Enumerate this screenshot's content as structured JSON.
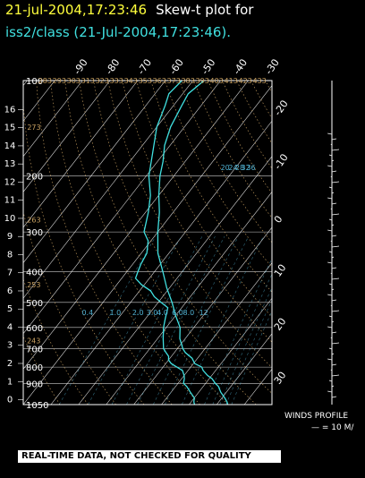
{
  "header": {
    "date_text": "21-jul-2004,17:23:46",
    "plot_label": "Skew-t plot for",
    "subtitle": "iss2/class (21-Jul-2004,17:23:46)."
  },
  "colors": {
    "background": "#000000",
    "title_date": "#ffff3c",
    "subtitle": "#40e0e0",
    "temperature_trace": "#40e0e0",
    "dewpoint_trace": "#40e0e0",
    "isotherms": "#ffffff",
    "isobars": "#ffffff",
    "dry_adiabats": "#c8a060",
    "mixing_ratio": "#50b0d0"
  },
  "chart_data": {
    "type": "line",
    "xlabel": "",
    "ylabel": "",
    "pressure_levels": [
      "100",
      "200",
      "300",
      "400",
      "500",
      "600",
      "700",
      "800",
      "900",
      "1050"
    ],
    "height_ticks": [
      "0",
      "1",
      "2",
      "3",
      "4",
      "5",
      "6",
      "7",
      "8",
      "9",
      "10",
      "11",
      "12",
      "13",
      "14",
      "15",
      "16"
    ],
    "temp_ticks_top": [
      "-90",
      "-80",
      "-70",
      "-60",
      "-50",
      "-40",
      "-30"
    ],
    "temp_ticks_right": [
      "-20",
      "-10",
      "0",
      "10",
      "20",
      "30"
    ],
    "ylim_hpa": [
      1050,
      100
    ],
    "xlim_celsius": [
      -40,
      50
    ],
    "skew_celsius_per_log_p": 1,
    "dry_adiabat_labels": [
      "243",
      "253",
      "263",
      "273",
      "283",
      "293",
      "303",
      "313",
      "323",
      "333",
      "343",
      "353",
      "363",
      "373",
      "383",
      "393",
      "403",
      "413",
      "423",
      "433",
      "443",
      "453",
      "463",
      "473"
    ],
    "mixing_ratio_labels": [
      "20",
      "24",
      "28",
      "32",
      "36",
      "0.4",
      "1.0",
      "2.0",
      "3.0",
      "4.0",
      "6.0",
      "8.0",
      "12"
    ],
    "series": [
      {
        "values": [
          [
            1050,
            34
          ],
          [
            1030,
            33
          ],
          [
            1000,
            31
          ],
          [
            960,
            28
          ],
          [
            920,
            25.5
          ],
          [
            900,
            23.5
          ],
          [
            870,
            21
          ],
          [
            850,
            18.5
          ],
          [
            820,
            15.5
          ],
          [
            800,
            14
          ],
          [
            780,
            10.5
          ],
          [
            750,
            8
          ],
          [
            720,
            4
          ],
          [
            700,
            2
          ],
          [
            650,
            -2
          ],
          [
            600,
            -5
          ],
          [
            550,
            -10
          ],
          [
            500,
            -15
          ],
          [
            450,
            -21
          ],
          [
            400,
            -27
          ],
          [
            350,
            -34
          ],
          [
            300,
            -40
          ],
          [
            260,
            -45
          ],
          [
            230,
            -50
          ],
          [
            200,
            -55
          ],
          [
            180,
            -58
          ],
          [
            160,
            -62
          ],
          [
            140,
            -65
          ],
          [
            120,
            -67
          ],
          [
            110,
            -68
          ],
          [
            100,
            -66
          ]
        ]
      },
      {
        "values": [
          [
            1050,
            22
          ],
          [
            1030,
            21
          ],
          [
            1000,
            20
          ],
          [
            960,
            17
          ],
          [
            920,
            14
          ],
          [
            900,
            12
          ],
          [
            870,
            11
          ],
          [
            850,
            10
          ],
          [
            820,
            8
          ],
          [
            800,
            5
          ],
          [
            780,
            2
          ],
          [
            760,
            0
          ],
          [
            740,
            -1
          ],
          [
            720,
            -3
          ],
          [
            700,
            -5
          ],
          [
            650,
            -8
          ],
          [
            600,
            -11
          ],
          [
            560,
            -13
          ],
          [
            520,
            -15
          ],
          [
            500,
            -19
          ],
          [
            480,
            -23
          ],
          [
            460,
            -26
          ],
          [
            440,
            -31
          ],
          [
            420,
            -35
          ],
          [
            400,
            -36
          ],
          [
            380,
            -37
          ],
          [
            350,
            -38
          ],
          [
            320,
            -41
          ],
          [
            300,
            -45
          ],
          [
            260,
            -49
          ],
          [
            230,
            -53
          ],
          [
            200,
            -59
          ],
          [
            170,
            -64
          ],
          [
            140,
            -70
          ],
          [
            120,
            -73
          ],
          [
            110,
            -75
          ],
          [
            100,
            -74
          ]
        ]
      }
    ]
  },
  "winds_profile": {
    "label": "WINDS PROFILE",
    "scale_text": "— = 10 M/"
  },
  "footer": {
    "notice": "REAL-TIME DATA, NOT CHECKED FOR QUALITY"
  }
}
